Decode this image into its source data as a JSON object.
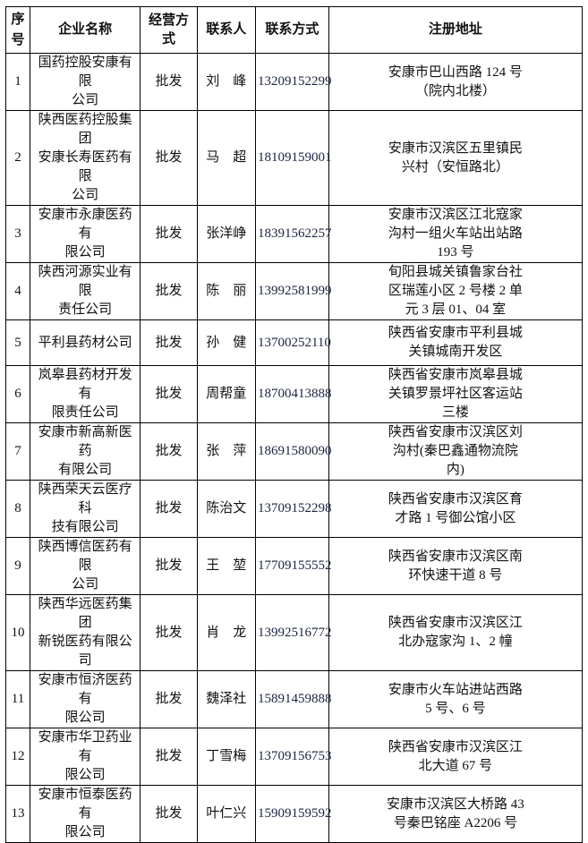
{
  "headers": [
    "序\n号",
    "企业名称",
    "经营方式",
    "联系人",
    "联系方式",
    "注册地址"
  ],
  "rows": [
    {
      "no": "1",
      "company": "国药控股安康有限\n公司",
      "mode": "批发",
      "contact": "刘　峰",
      "phone": "13209152299",
      "address": "安康市巴山西路 124 号\n（院内北楼）"
    },
    {
      "no": "2",
      "company": "陕西医药控股集团\n安康长寿医药有限\n公司",
      "mode": "批发",
      "contact": "马　超",
      "phone": "18109159001",
      "address": "安康市汉滨区五里镇民\n兴村（安恒路北）"
    },
    {
      "no": "3",
      "company": "安康市永康医药有\n限公司",
      "mode": "批发",
      "contact": "张洋峥",
      "phone": "18391562257",
      "address": "安康市汉滨区江北寇家\n沟村一组火车站出站路\n193 号"
    },
    {
      "no": "4",
      "company": "陕西河源实业有限\n责任公司",
      "mode": "批发",
      "contact": "陈　丽",
      "phone": "13992581999",
      "address": "旬阳县城关镇鲁家台社\n区瑞莲小区 2 号楼 2 单\n元 3 层 01、04 室"
    },
    {
      "no": "5",
      "company": "平利县药材公司",
      "mode": "批发",
      "contact": "孙　健",
      "phone": "13700252110",
      "address": "陕西省安康市平利县城\n关镇城南开发区"
    },
    {
      "no": "6",
      "company": "岚皋县药材开发有\n限责任公司",
      "mode": "批发",
      "contact": "周帮童",
      "phone": "18700413888",
      "address": "陕西省安康市岚皋县城\n关镇罗景坪社区客运站\n三楼"
    },
    {
      "no": "7",
      "company": "安康市新高新医药\n有限公司",
      "mode": "批发",
      "contact": "张　萍",
      "phone": "18691580090",
      "address": "陕西省安康市汉滨区刘\n沟村(秦巴鑫通物流院\n内)"
    },
    {
      "no": "8",
      "company": "陕西荣天云医疗科\n技有限公司",
      "mode": "批发",
      "contact": "陈治文",
      "phone": "13709152298",
      "address": "陕西省安康市汉滨区育\n才路 1 号御公馆小区"
    },
    {
      "no": "9",
      "company": "陕西博信医药有限\n公司",
      "mode": "批发",
      "contact": "王　堃",
      "phone": "17709155552",
      "address": "陕西省安康市汉滨区南\n环快速干道 8 号"
    },
    {
      "no": "10",
      "company": "陕西华远医药集团\n新锐医药有限公司",
      "mode": "批发",
      "contact": "肖　龙",
      "phone": "13992516772",
      "address": "陕西省安康市汉滨区江\n北办寇家沟 1、2 幢"
    },
    {
      "no": "11",
      "company": "安康市恒济医药有\n限公司",
      "mode": "批发",
      "contact": "魏泽社",
      "phone": "15891459888",
      "address": "安康市火车站进站西路\n5 号、6 号"
    },
    {
      "no": "12",
      "company": "安康市华卫药业有\n限公司",
      "mode": "批发",
      "contact": "丁雪梅",
      "phone": "13709156753",
      "address": "陕西省安康市汉滨区江\n北大道 67 号"
    },
    {
      "no": "13",
      "company": "安康市恒泰医药有\n限公司",
      "mode": "批发",
      "contact": "叶仁兴",
      "phone": "15909159592",
      "address": "安康市汉滨区大桥路 43\n号秦巴铭座 A2206 号"
    }
  ]
}
